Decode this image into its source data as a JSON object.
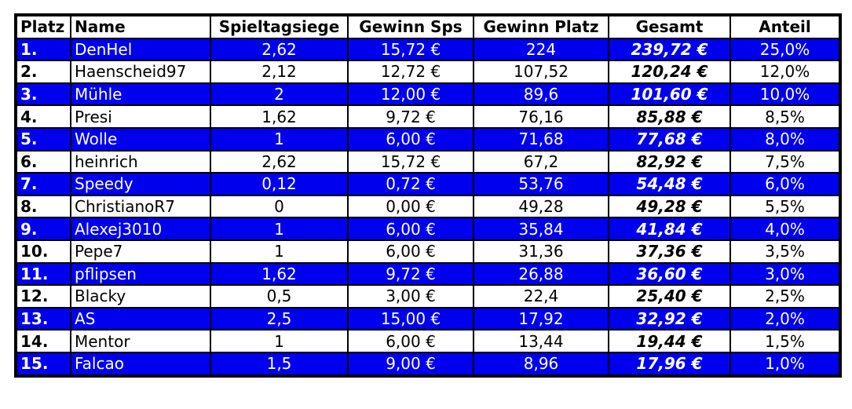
{
  "table": {
    "header": [
      "Platz",
      "Name",
      "Spieltagsiege",
      "Gewinn Sps",
      "Gewinn Platz",
      "Gesamt",
      "Anteil"
    ],
    "rows": [
      [
        "1.",
        "DenHel",
        "2,62",
        "15,72 €",
        "224",
        "239,72 €",
        "25,0%"
      ],
      [
        "2.",
        "Haenscheid97",
        "2,12",
        "12,72 €",
        "107,52",
        "120,24 €",
        "12,0%"
      ],
      [
        "3.",
        "Mühle",
        "2",
        "12,00 €",
        "89,6",
        "101,60 €",
        "10,0%"
      ],
      [
        "4.",
        "Presi",
        "1,62",
        "9,72 €",
        "76,16",
        "85,88 €",
        "8,5%"
      ],
      [
        "5.",
        "Wolle",
        "1",
        "6,00 €",
        "71,68",
        "77,68 €",
        "8,0%"
      ],
      [
        "6.",
        "heinrich",
        "2,62",
        "15,72 €",
        "67,2",
        "82,92 €",
        "7,5%"
      ],
      [
        "7.",
        "Speedy",
        "0,12",
        "0,72 €",
        "53,76",
        "54,48 €",
        "6,0%"
      ],
      [
        "8.",
        "ChristianoR7",
        "0",
        "0,00 €",
        "49,28",
        "49,28 €",
        "5,5%"
      ],
      [
        "9.",
        "Alexej3010",
        "1",
        "6,00 €",
        "35,84",
        "41,84 €",
        "4,0%"
      ],
      [
        "10.",
        "Pepe7",
        "1",
        "6,00 €",
        "31,36",
        "37,36 €",
        "3,5%"
      ],
      [
        "11.",
        "pflipsen",
        "1,62",
        "9,72 €",
        "26,88",
        "36,60 €",
        "3,0%"
      ],
      [
        "12.",
        "Blacky",
        "0,5",
        "3,00 €",
        "22,4",
        "25,40 €",
        "2,5%"
      ],
      [
        "13.",
        "AS",
        "2,5",
        "15,00 €",
        "17,92",
        "32,92 €",
        "2,0%"
      ],
      [
        "14.",
        "Mentor",
        "1",
        "6,00 €",
        "13,44",
        "19,44 €",
        "1,5%"
      ],
      [
        "15.",
        "Falcao",
        "1,5",
        "9,00 €",
        "8,96",
        "17,96 €",
        "1,0%"
      ]
    ]
  }
}
